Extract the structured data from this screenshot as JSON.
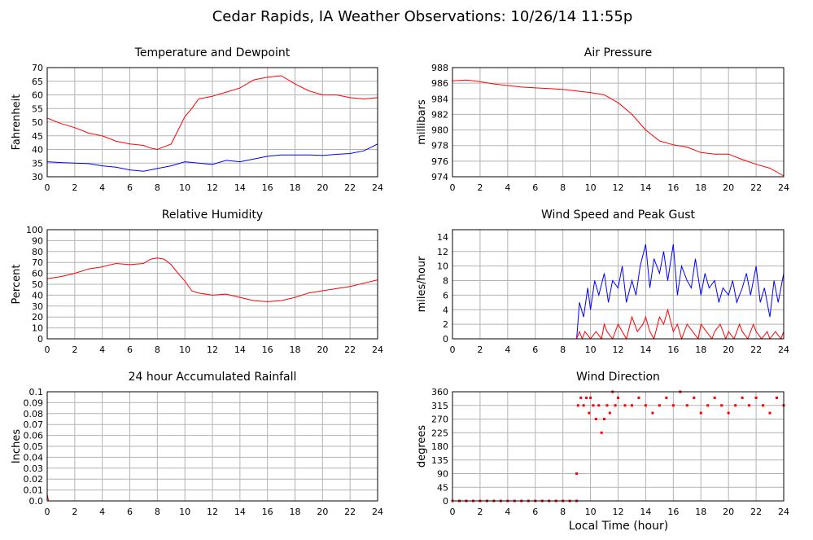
{
  "page_title": "Cedar Rapids, IA Weather Observations: 10/26/14 11:55p",
  "shared_xlabel": "Local Time (hour)",
  "colors": {
    "red": "#ff0000",
    "blue": "#0000ff",
    "grid": "#b3b3b3",
    "frame": "#000000"
  },
  "chart_data": [
    {
      "id": "temp",
      "type": "line",
      "title": "Temperature and Dewpoint",
      "ylabel": "Fahrenheit",
      "xlabel": "",
      "xlim": [
        0,
        24
      ],
      "ylim": [
        30,
        70
      ],
      "xticks": [
        0,
        2,
        4,
        6,
        8,
        10,
        12,
        14,
        16,
        18,
        20,
        22,
        24
      ],
      "yticks": [
        30,
        35,
        40,
        45,
        50,
        55,
        60,
        65,
        70
      ],
      "series": [
        {
          "color": "#ff0000",
          "x": [
            0,
            1,
            2,
            3,
            4,
            5,
            6,
            7,
            7.5,
            8,
            8.5,
            9,
            9.5,
            10,
            10.5,
            11,
            12,
            13,
            14,
            15,
            16,
            17,
            18,
            19,
            20,
            21,
            22,
            23,
            24
          ],
          "y": [
            51.5,
            49.5,
            48,
            46,
            45,
            43,
            42,
            41.5,
            40.5,
            40,
            41,
            42,
            47,
            52,
            55,
            58.5,
            59.5,
            61,
            62.5,
            65.5,
            66.5,
            67,
            64,
            61.5,
            60,
            60,
            59,
            58.5,
            59
          ]
        },
        {
          "color": "#0000ff",
          "x": [
            0,
            1,
            2,
            3,
            4,
            5,
            6,
            7,
            8,
            9,
            10,
            11,
            12,
            13,
            14,
            15,
            16,
            17,
            18,
            19,
            20,
            21,
            22,
            23,
            24
          ],
          "y": [
            35.5,
            35.2,
            35,
            34.8,
            34,
            33.5,
            32.5,
            32,
            33,
            34,
            35.5,
            35,
            34.5,
            36,
            35.5,
            36.5,
            37.5,
            38,
            38,
            38,
            37.8,
            38.2,
            38.5,
            39.5,
            42
          ]
        }
      ]
    },
    {
      "id": "pressure",
      "type": "line",
      "title": "Air Pressure",
      "ylabel": "millibars",
      "xlabel": "",
      "xlim": [
        0,
        24
      ],
      "ylim": [
        974,
        988
      ],
      "xticks": [
        0,
        2,
        4,
        6,
        8,
        10,
        12,
        14,
        16,
        18,
        20,
        22,
        24
      ],
      "yticks": [
        974,
        976,
        978,
        980,
        982,
        984,
        986,
        988
      ],
      "series": [
        {
          "color": "#ff0000",
          "x": [
            0,
            1,
            2,
            3,
            4,
            5,
            6,
            7,
            8,
            9,
            10,
            11,
            12,
            13,
            14,
            15,
            16,
            17,
            18,
            19,
            20,
            21,
            22,
            23,
            24
          ],
          "y": [
            986.3,
            986.4,
            986.2,
            985.9,
            985.7,
            985.5,
            985.4,
            985.3,
            985.2,
            985,
            984.8,
            984.5,
            983.5,
            982,
            980,
            978.6,
            978.1,
            977.8,
            977.1,
            976.9,
            976.9,
            976.2,
            975.6,
            975.1,
            974.1
          ]
        }
      ]
    },
    {
      "id": "rh",
      "type": "line",
      "title": "Relative Humidity",
      "ylabel": "Percent",
      "xlabel": "",
      "xlim": [
        0,
        24
      ],
      "ylim": [
        0,
        100
      ],
      "xticks": [
        0,
        2,
        4,
        6,
        8,
        10,
        12,
        14,
        16,
        18,
        20,
        22,
        24
      ],
      "yticks": [
        0,
        10,
        20,
        30,
        40,
        50,
        60,
        70,
        80,
        90,
        100
      ],
      "series": [
        {
          "color": "#ff0000",
          "x": [
            0,
            1,
            2,
            3,
            4,
            5,
            6,
            7,
            7.5,
            8,
            8.5,
            9,
            9.5,
            10,
            10.5,
            11,
            12,
            13,
            14,
            15,
            16,
            17,
            18,
            19,
            20,
            21,
            22,
            23,
            24
          ],
          "y": [
            55,
            57,
            60,
            64,
            66,
            69,
            68,
            69,
            73,
            74,
            73,
            68,
            60,
            53,
            44,
            42,
            40,
            41,
            38,
            35,
            34,
            35,
            38,
            42,
            44,
            46,
            48,
            51,
            54
          ]
        }
      ]
    },
    {
      "id": "wind",
      "type": "line",
      "title": "Wind Speed and Peak Gust",
      "ylabel": "miles/hour",
      "xlabel": "",
      "xlim": [
        0,
        24
      ],
      "ylim": [
        0,
        15
      ],
      "xticks": [
        0,
        2,
        4,
        6,
        8,
        10,
        12,
        14,
        16,
        18,
        20,
        22,
        24
      ],
      "yticks": [
        0,
        2,
        4,
        6,
        8,
        10,
        12,
        14
      ],
      "series": [
        {
          "color": "#0000ff",
          "x": [
            0,
            9,
            9.2,
            9.5,
            9.8,
            10,
            10.3,
            10.6,
            11,
            11.3,
            11.6,
            12,
            12.3,
            12.6,
            13,
            13.3,
            13.6,
            14,
            14.3,
            14.6,
            15,
            15.3,
            15.6,
            16,
            16.3,
            16.6,
            17,
            17.3,
            17.6,
            18,
            18.3,
            18.6,
            19,
            19.3,
            19.6,
            20,
            20.3,
            20.6,
            21,
            21.3,
            21.6,
            22,
            22.3,
            22.6,
            23,
            23.3,
            23.6,
            24
          ],
          "y": [
            0,
            0,
            5,
            3,
            7,
            4,
            8,
            6,
            9,
            5,
            8,
            7,
            10,
            5,
            8,
            6,
            10,
            13,
            7,
            11,
            9,
            12,
            8,
            13,
            6,
            10,
            8,
            7,
            11,
            6,
            9,
            7,
            8,
            5,
            7,
            6,
            8,
            5,
            7,
            9,
            6,
            10,
            5,
            7,
            3,
            8,
            5,
            9
          ]
        },
        {
          "color": "#ff0000",
          "x": [
            0,
            9,
            9.2,
            9.4,
            9.6,
            10,
            10.4,
            10.8,
            11,
            11.2,
            11.6,
            12,
            12.3,
            12.6,
            13,
            13.4,
            13.8,
            14,
            14.3,
            14.6,
            15,
            15.3,
            15.6,
            16,
            16.3,
            16.6,
            17,
            17.4,
            17.8,
            18,
            18.4,
            18.8,
            19,
            19.4,
            19.8,
            20,
            20.4,
            20.8,
            21,
            21.4,
            21.8,
            22,
            22.4,
            22.8,
            23,
            23.4,
            23.8,
            24
          ],
          "y": [
            0,
            0,
            1,
            0,
            1,
            0,
            1,
            0,
            2,
            1,
            0,
            2,
            1,
            0,
            3,
            1,
            2,
            3,
            1,
            0,
            3,
            2,
            4,
            1,
            2,
            0,
            2,
            1,
            0,
            2,
            1,
            0,
            1,
            2,
            0,
            1,
            0,
            2,
            1,
            0,
            2,
            1,
            0,
            1,
            0,
            1,
            0,
            1
          ]
        }
      ]
    },
    {
      "id": "rain",
      "type": "line",
      "title": "24 hour Accumulated Rainfall",
      "ylabel": "Inches",
      "xlabel": "",
      "xlim": [
        0,
        24
      ],
      "ylim": [
        0,
        0.1
      ],
      "xticks": [
        0,
        2,
        4,
        6,
        8,
        10,
        12,
        14,
        16,
        18,
        20,
        22,
        24
      ],
      "yticks": [
        "0.0",
        "0.01",
        "0.02",
        "0.03",
        "0.04",
        "0.05",
        "0.06",
        "0.07",
        "0.08",
        "0.09",
        "0.1"
      ],
      "series": [
        {
          "color": "#ff0000",
          "x": [
            0,
            0.1,
            24
          ],
          "y": [
            0.006,
            0,
            0
          ]
        }
      ]
    },
    {
      "id": "dir",
      "type": "scatter",
      "title": "Wind Direction",
      "ylabel": "degrees",
      "xlabel": "Local Time (hour)",
      "xlim": [
        0,
        24
      ],
      "ylim": [
        0,
        360
      ],
      "xticks": [
        0,
        2,
        4,
        6,
        8,
        10,
        12,
        14,
        16,
        18,
        20,
        22,
        24
      ],
      "yticks": [
        0,
        45,
        90,
        135,
        180,
        225,
        270,
        315,
        360
      ],
      "series": [
        {
          "color": "#ff0000",
          "points": [
            [
              0,
              0
            ],
            [
              0.5,
              0
            ],
            [
              1,
              0
            ],
            [
              1.5,
              0
            ],
            [
              2,
              0
            ],
            [
              2.5,
              0
            ],
            [
              3,
              0
            ],
            [
              3.5,
              0
            ],
            [
              4,
              0
            ],
            [
              4.5,
              0
            ],
            [
              5,
              0
            ],
            [
              5.5,
              0
            ],
            [
              6,
              0
            ],
            [
              6.5,
              0
            ],
            [
              7,
              0
            ],
            [
              7.5,
              0
            ],
            [
              8,
              0
            ],
            [
              8.5,
              0
            ],
            [
              9,
              0
            ],
            [
              9,
              90
            ],
            [
              9.1,
              315
            ],
            [
              9.3,
              340
            ],
            [
              9.5,
              315
            ],
            [
              9.7,
              340
            ],
            [
              9.9,
              290
            ],
            [
              10,
              340
            ],
            [
              10.2,
              315
            ],
            [
              10.4,
              270
            ],
            [
              10.6,
              315
            ],
            [
              10.8,
              225
            ],
            [
              11,
              270
            ],
            [
              11.2,
              315
            ],
            [
              11.4,
              290
            ],
            [
              11.6,
              360
            ],
            [
              11.8,
              315
            ],
            [
              12,
              340
            ],
            [
              12.5,
              315
            ],
            [
              13,
              315
            ],
            [
              13.5,
              340
            ],
            [
              14,
              315
            ],
            [
              14.5,
              290
            ],
            [
              15,
              315
            ],
            [
              15.5,
              340
            ],
            [
              16,
              315
            ],
            [
              16.5,
              360
            ],
            [
              17,
              315
            ],
            [
              17.5,
              340
            ],
            [
              18,
              290
            ],
            [
              18.5,
              315
            ],
            [
              19,
              340
            ],
            [
              19.5,
              315
            ],
            [
              20,
              290
            ],
            [
              20.5,
              315
            ],
            [
              21,
              340
            ],
            [
              21.5,
              315
            ],
            [
              22,
              340
            ],
            [
              22.5,
              315
            ],
            [
              23,
              290
            ],
            [
              23.5,
              340
            ],
            [
              24,
              315
            ]
          ]
        }
      ]
    }
  ]
}
